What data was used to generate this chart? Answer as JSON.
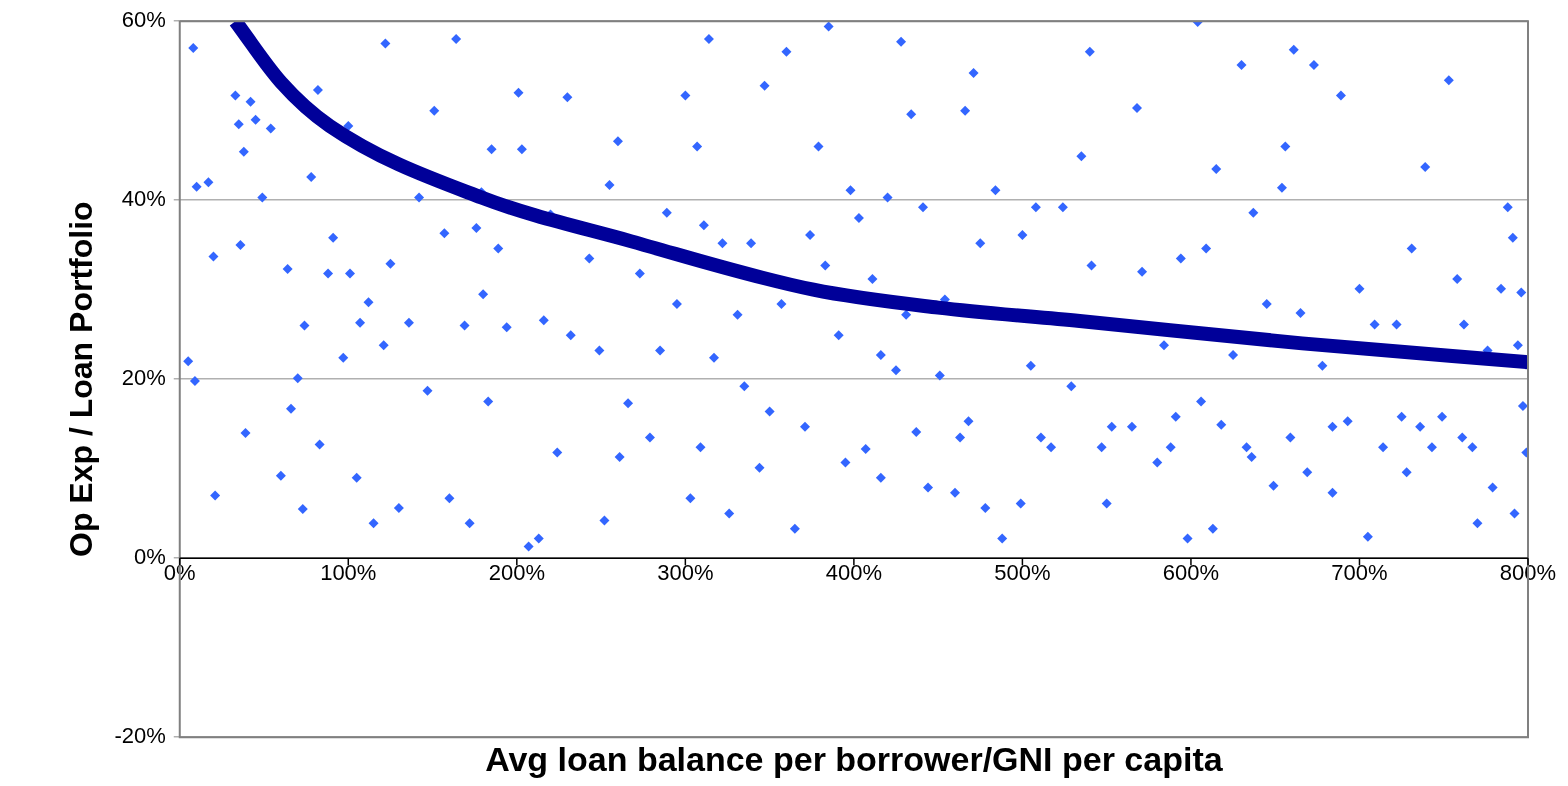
{
  "chart_data": {
    "type": "scatter",
    "xlabel": "Avg loan balance per borrower/GNI per capita",
    "ylabel": "Op Exp / Loan Portfolio",
    "xlim": [
      0,
      800
    ],
    "ylim": [
      -20,
      60
    ],
    "xticks": [
      {
        "value": 0,
        "label": "0%"
      },
      {
        "value": 100,
        "label": "100%"
      },
      {
        "value": 200,
        "label": "200%"
      },
      {
        "value": 300,
        "label": "300%"
      },
      {
        "value": 400,
        "label": "400%"
      },
      {
        "value": 500,
        "label": "500%"
      },
      {
        "value": 600,
        "label": "600%"
      },
      {
        "value": 700,
        "label": "700%"
      },
      {
        "value": 800,
        "label": "800%"
      }
    ],
    "yticks": [
      {
        "value": -20,
        "label": "-20%"
      },
      {
        "value": 0,
        "label": "0%"
      },
      {
        "value": 20,
        "label": "20%"
      },
      {
        "value": 40,
        "label": "40%"
      },
      {
        "value": 60,
        "label": "60%"
      }
    ],
    "grid": "y",
    "series": [
      {
        "color": "#3366ff",
        "marker": "diamond",
        "x": [
          5,
          8,
          9,
          10,
          17,
          20,
          21,
          33,
          35,
          36,
          38,
          39,
          42,
          45,
          49,
          54,
          60,
          64,
          66,
          70,
          73,
          74,
          78,
          82,
          83,
          88,
          91,
          97,
          100,
          101,
          105,
          107,
          112,
          115,
          121,
          122,
          125,
          130,
          136,
          142,
          147,
          151,
          157,
          160,
          164,
          169,
          172,
          176,
          179,
          180,
          183,
          185,
          189,
          194,
          201,
          203,
          207,
          213,
          216,
          220,
          224,
          230,
          232,
          243,
          249,
          252,
          255,
          260,
          261,
          266,
          273,
          279,
          285,
          289,
          295,
          300,
          303,
          307,
          309,
          311,
          314,
          317,
          322,
          326,
          331,
          335,
          339,
          344,
          347,
          350,
          357,
          360,
          365,
          371,
          374,
          379,
          383,
          385,
          391,
          395,
          398,
          403,
          407,
          411,
          416,
          416,
          420,
          425,
          428,
          431,
          434,
          437,
          441,
          444,
          451,
          454,
          460,
          463,
          466,
          468,
          471,
          475,
          478,
          484,
          488,
          499,
          500,
          505,
          508,
          511,
          517,
          524,
          529,
          535,
          540,
          541,
          547,
          550,
          553,
          565,
          568,
          571,
          580,
          584,
          588,
          591,
          594,
          598,
          604,
          606,
          609,
          613,
          615,
          618,
          625,
          630,
          633,
          636,
          637,
          645,
          649,
          654,
          656,
          659,
          661,
          665,
          669,
          673,
          678,
          684,
          684,
          689,
          693,
          700,
          705,
          709,
          714,
          722,
          725,
          728,
          731,
          736,
          739,
          743,
          749,
          753,
          758,
          761,
          762,
          767,
          770,
          776,
          779,
          784,
          788,
          791,
          792,
          794,
          796,
          797,
          799
        ],
        "values": [
          22,
          57,
          19.8,
          41.5,
          42,
          33.7,
          7,
          51.7,
          48.5,
          35,
          45.4,
          14,
          51,
          49,
          40.3,
          48,
          9.2,
          32.3,
          16.7,
          20.1,
          5.5,
          26,
          42.6,
          52.3,
          12.7,
          31.8,
          35.8,
          22.4,
          48.3,
          31.8,
          9,
          26.3,
          28.6,
          3.9,
          23.8,
          57.5,
          32.9,
          5.6,
          26.3,
          40.3,
          18.7,
          50,
          36.3,
          6.7,
          58,
          26,
          3.9,
          36.9,
          40.9,
          29.5,
          17.5,
          45.7,
          34.6,
          25.8,
          52,
          45.7,
          1.3,
          2.2,
          26.6,
          38.4,
          11.8,
          51.5,
          24.9,
          33.5,
          23.2,
          4.2,
          41.7,
          46.6,
          11.3,
          17.3,
          31.8,
          13.5,
          23.2,
          38.6,
          28.4,
          51.7,
          6.7,
          46,
          12.4,
          37.2,
          58,
          22.4,
          35.2,
          5,
          27.2,
          19.2,
          35.2,
          10.1,
          52.8,
          16.4,
          28.4,
          56.6,
          3.3,
          14.7,
          36.1,
          46,
          32.7,
          59.4,
          24.9,
          10.7,
          41.1,
          38,
          12.2,
          31.2,
          22.7,
          9,
          40.3,
          21,
          57.7,
          27.2,
          49.6,
          14.1,
          39.2,
          7.9,
          20.4,
          28.9,
          7.3,
          13.5,
          50,
          15.3,
          54.2,
          35.2,
          5.6,
          41.1,
          2.2,
          6.1,
          36.1,
          21.5,
          39.2,
          13.5,
          12.4,
          39.2,
          19.2,
          44.9,
          56.6,
          32.7,
          12.4,
          6.1,
          14.7,
          14.7,
          50.3,
          32,
          10.7,
          23.8,
          12.4,
          15.8,
          33.5,
          2.2,
          59.9,
          17.5,
          34.6,
          3.3,
          43.5,
          14.9,
          22.7,
          55.1,
          12.4,
          11.3,
          38.6,
          28.4,
          8.1,
          41.4,
          46,
          13.5,
          56.8,
          27.4,
          9.6,
          55.1,
          21.5,
          7.3,
          14.7,
          51.7,
          15.3,
          30.1,
          2.4,
          26.1,
          12.4,
          26.1,
          15.8,
          9.6,
          34.6,
          14.7,
          43.7,
          12.4,
          15.8,
          53.4,
          31.2,
          13.5,
          26.1,
          12.4,
          3.9,
          23.2,
          7.9,
          30.1,
          39.2,
          35.8,
          5,
          23.8,
          29.7,
          17,
          11.8
        ]
      },
      {
        "type": "line",
        "color": "#000099",
        "marker": "none",
        "x": [
          33,
          60,
          89,
          179,
          268,
          376,
          450,
          534,
          666,
          800
        ],
        "values": [
          60,
          53.2,
          48.3,
          40.3,
          35.4,
          30,
          28,
          26.5,
          24,
          21.9
        ]
      }
    ]
  }
}
